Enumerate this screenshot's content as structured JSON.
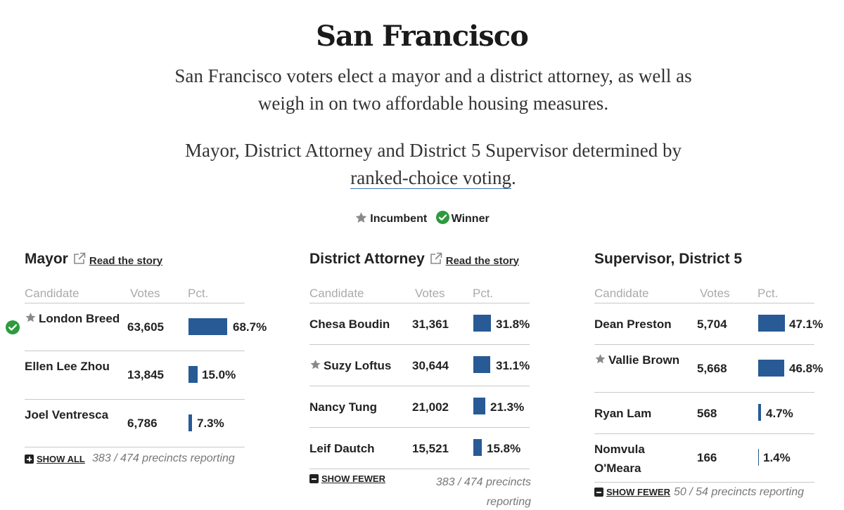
{
  "page": {
    "title": "San Francisco",
    "intro": "San Francisco voters elect a mayor and a district attorney, as well as weigh in on two affordable housing measures.",
    "rcv_prefix": "Mayor, District Attorney and District 5 Supervisor determined by ",
    "rcv_link": "ranked-choice voting",
    "rcv_suffix": "."
  },
  "legend": {
    "incumbent": "Incumbent",
    "winner": "Winner"
  },
  "columns": {
    "candidate": "Candidate",
    "votes": "Votes",
    "pct": "Pct."
  },
  "colors": {
    "bar": "#285a95",
    "winner_check": "#2e9a3d",
    "incumbent_star": "#8a8a8a"
  },
  "races": {
    "mayor": {
      "title": "Mayor",
      "story_link": "Read the story",
      "toggle": "SHOW ALL",
      "reporting": "383 / 474 precincts reporting",
      "candidates": [
        {
          "name": "London Breed",
          "votes": "63,605",
          "pct": "68.7%",
          "pct_value": 68.7,
          "incumbent": true,
          "winner": true
        },
        {
          "name": "Ellen Lee Zhou",
          "votes": "13,845",
          "pct": "15.0%",
          "pct_value": 15.0
        },
        {
          "name": "Joel Ventresca",
          "votes": "6,786",
          "pct": "7.3%",
          "pct_value": 7.3
        }
      ]
    },
    "da": {
      "title": "District Attorney",
      "story_link": "Read the story",
      "toggle": "SHOW FEWER",
      "reporting": "383 / 474 precincts reporting",
      "candidates": [
        {
          "name": "Chesa Boudin",
          "votes": "31,361",
          "pct": "31.8%",
          "pct_value": 31.8
        },
        {
          "name": "Suzy Loftus",
          "votes": "30,644",
          "pct": "31.1%",
          "pct_value": 31.1,
          "incumbent": true
        },
        {
          "name": "Nancy Tung",
          "votes": "21,002",
          "pct": "21.3%",
          "pct_value": 21.3
        },
        {
          "name": "Leif Dautch",
          "votes": "15,521",
          "pct": "15.8%",
          "pct_value": 15.8
        }
      ]
    },
    "sup5": {
      "title": "Supervisor, District 5",
      "toggle": "SHOW FEWER",
      "reporting": "50 / 54 precincts reporting",
      "candidates": [
        {
          "name": "Dean Preston",
          "votes": "5,704",
          "pct": "47.1%",
          "pct_value": 47.1
        },
        {
          "name": "Vallie Brown",
          "votes": "5,668",
          "pct": "46.8%",
          "pct_value": 46.8,
          "incumbent": true
        },
        {
          "name": "Ryan Lam",
          "votes": "568",
          "pct": "4.7%",
          "pct_value": 4.7
        },
        {
          "name": "Nomvula O'Meara",
          "votes": "166",
          "pct": "1.4%",
          "pct_value": 1.4
        }
      ]
    }
  }
}
